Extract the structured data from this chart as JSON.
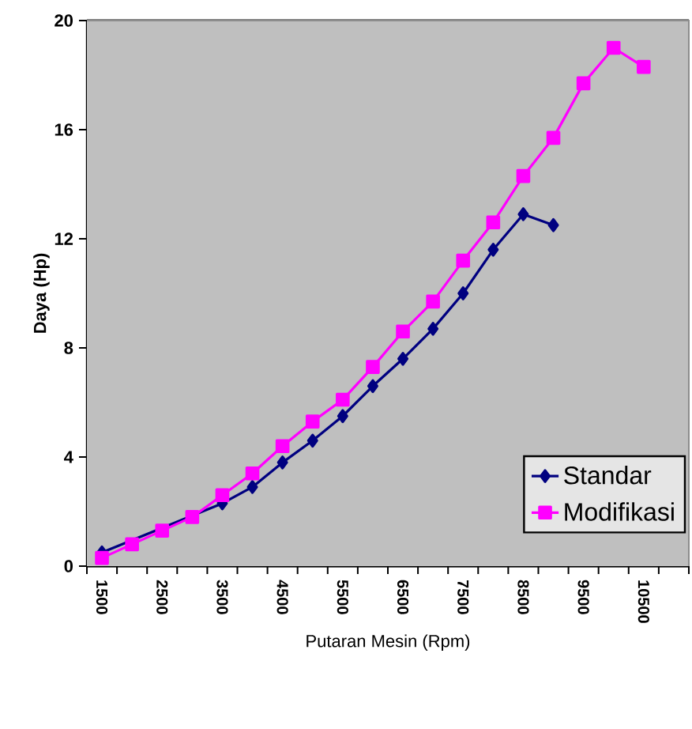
{
  "chart_data": {
    "type": "line",
    "xlabel": "Putaran Mesin (Rpm)",
    "ylabel": "Daya (Hp)",
    "categories": [
      "1500",
      null,
      "2500",
      null,
      "3500",
      null,
      "4500",
      null,
      "5500",
      null,
      "6500",
      null,
      "7500",
      null,
      "8500",
      null,
      "9500",
      null,
      "10500",
      null
    ],
    "series": [
      {
        "name": "Standar",
        "color": "#000080",
        "marker": "diamond",
        "values": [
          0.5,
          null,
          null,
          null,
          2.3,
          2.9,
          3.8,
          4.6,
          5.5,
          6.6,
          7.6,
          8.7,
          10.0,
          11.6,
          12.9,
          12.5,
          null,
          null,
          null,
          null
        ]
      },
      {
        "name": "Modifikasi",
        "color": "#ff00ff",
        "marker": "square",
        "values": [
          0.3,
          0.8,
          1.3,
          1.8,
          2.6,
          3.4,
          4.4,
          5.3,
          6.1,
          7.3,
          8.6,
          9.7,
          11.2,
          12.6,
          14.3,
          15.7,
          17.7,
          19.0,
          18.3,
          null
        ]
      }
    ],
    "ylim": [
      0,
      20
    ],
    "yticks": [
      0,
      4,
      8,
      12,
      16,
      20
    ],
    "grid": "y",
    "legend": "bottom right"
  }
}
